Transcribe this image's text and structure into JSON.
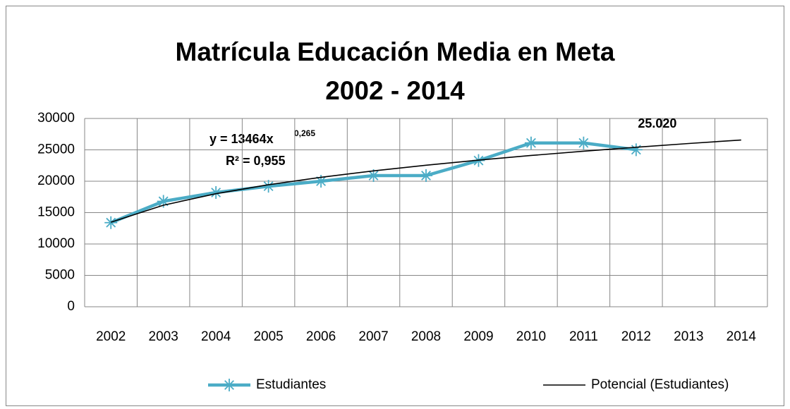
{
  "chart_data": {
    "type": "line",
    "title": [
      "Matrícula Educación Media en Meta",
      "2002 - 2014"
    ],
    "categories": [
      "2002",
      "2003",
      "2004",
      "2005",
      "2006",
      "2007",
      "2008",
      "2009",
      "2010",
      "2011",
      "2012",
      "2013",
      "2014"
    ],
    "series": [
      {
        "name": "Estudiantes",
        "color": "#4bacc6",
        "marker": "star",
        "values": [
          13400,
          16800,
          18200,
          19200,
          20000,
          20900,
          20900,
          23300,
          26100,
          26100,
          25020,
          null,
          null
        ],
        "value_labels": [
          null,
          null,
          null,
          null,
          null,
          null,
          null,
          null,
          null,
          null,
          "25.020",
          null,
          null
        ]
      },
      {
        "name": "Potencial (Estudiantes)",
        "color": "#000000",
        "marker": "none",
        "values": [
          13464,
          16180,
          18014,
          19443,
          20625,
          21646,
          22549,
          23364,
          24103,
          24786,
          25419,
          26011,
          26569
        ]
      }
    ],
    "annotations": {
      "equation": "y = 13464x",
      "exponent": "0,265",
      "r_squared": "R² = 0,955"
    },
    "ylim": [
      0,
      30000
    ],
    "yticks": [
      0,
      5000,
      10000,
      15000,
      20000,
      25000,
      30000
    ],
    "grid": true,
    "legend": "bottom"
  }
}
